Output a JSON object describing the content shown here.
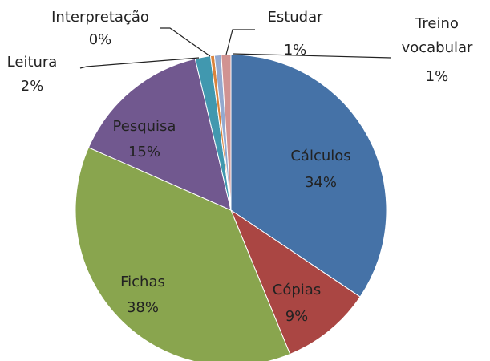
{
  "chart_data": {
    "type": "pie",
    "categories": [
      "Cálculos",
      "Cópias",
      "Fichas",
      "Pesquisa",
      "Leitura",
      "Interpretação",
      "Estudar",
      "Treino vocabular"
    ],
    "values": [
      34.4,
      9.4,
      37.8,
      14.7,
      1.6,
      0.4,
      0.7,
      1.0
    ],
    "value_labels": [
      "34%",
      "9%",
      "38%",
      "15%",
      "2%",
      "0%",
      "1%",
      "1%"
    ],
    "colors": [
      "#4572a7",
      "#aa4643",
      "#89a54e",
      "#71588f",
      "#4198af",
      "#db843d",
      "#93a9cf",
      "#d19392"
    ]
  }
}
